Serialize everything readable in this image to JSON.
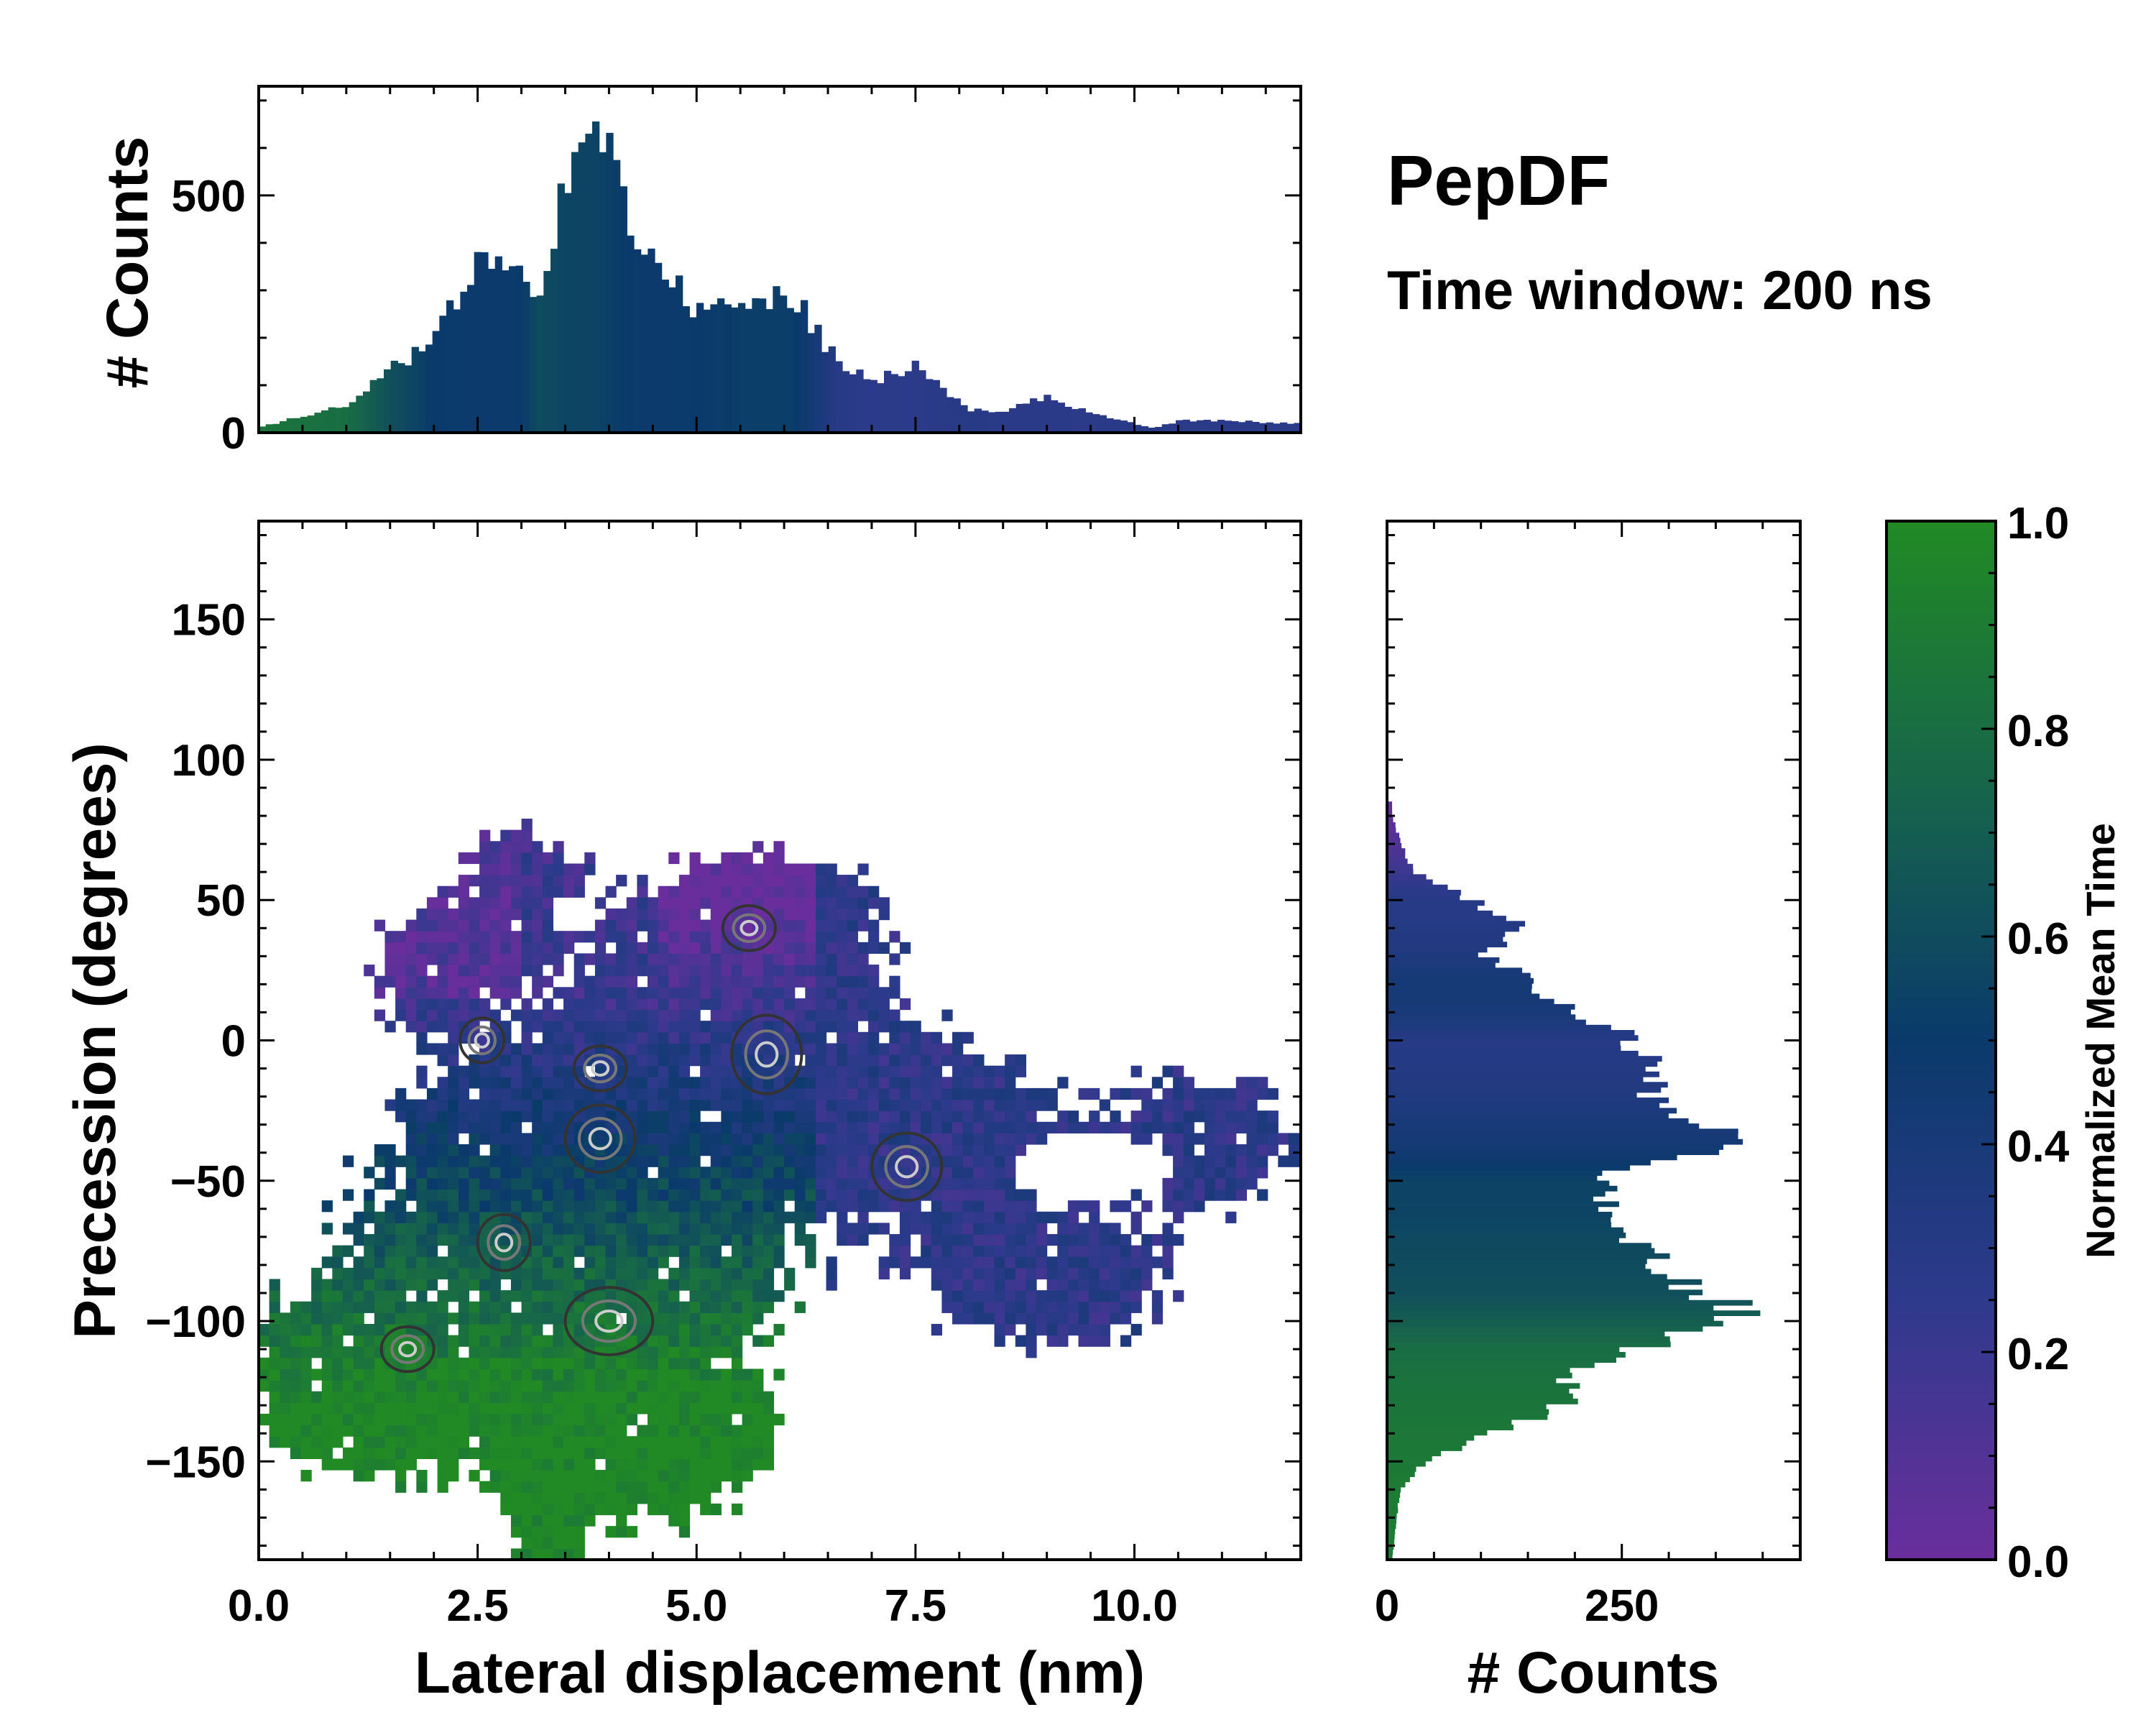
{
  "title": "PepDF",
  "subtitle": "Time window: 200 ns",
  "colormap": {
    "label": "Normalized Mean Time",
    "ticks": [
      "0.0",
      "0.2",
      "0.4",
      "0.6",
      "0.8",
      "1.0"
    ],
    "stops": [
      {
        "v": 0.0,
        "color": "#6a2e9c"
      },
      {
        "v": 0.25,
        "color": "#2e3a8c"
      },
      {
        "v": 0.5,
        "color": "#0a3a6b"
      },
      {
        "v": 0.75,
        "color": "#17664a"
      },
      {
        "v": 1.0,
        "color": "#218a24"
      }
    ]
  },
  "chart_data": [
    {
      "id": "joint",
      "type": "heatmap",
      "xlabel": "Lateral displacement (nm)",
      "ylabel": "Precession (degrees)",
      "xlim": [
        0,
        11.9
      ],
      "ylim": [
        -185,
        185
      ],
      "xticks": [
        0,
        2.5,
        5,
        7.5,
        10
      ],
      "xticklabels": [
        "0.0",
        "2.5",
        "5.0",
        "7.5",
        "10.0"
      ],
      "yticks": [
        -150,
        -100,
        -50,
        0,
        50,
        100,
        150
      ],
      "yticklabels": [
        "−150",
        "−100",
        "−50",
        "0",
        "50",
        "100",
        "150"
      ],
      "hotspots": [
        {
          "x": 3.9,
          "y": -35,
          "w": 0.4,
          "h": 12
        },
        {
          "x": 3.9,
          "y": -10,
          "w": 0.3,
          "h": 8
        },
        {
          "x": 4.0,
          "y": -100,
          "w": 0.5,
          "h": 12
        },
        {
          "x": 2.8,
          "y": -72,
          "w": 0.3,
          "h": 10
        },
        {
          "x": 5.8,
          "y": -5,
          "w": 0.4,
          "h": 14
        },
        {
          "x": 2.55,
          "y": 0,
          "w": 0.25,
          "h": 8
        },
        {
          "x": 1.7,
          "y": -110,
          "w": 0.3,
          "h": 8
        },
        {
          "x": 7.4,
          "y": -45,
          "w": 0.4,
          "h": 12
        },
        {
          "x": 5.6,
          "y": 40,
          "w": 0.3,
          "h": 8
        }
      ]
    },
    {
      "id": "top-histogram",
      "type": "bar",
      "ylabel": "# Counts",
      "ylim": [
        0,
        730
      ],
      "yticks": [
        0,
        500
      ],
      "yticklabels": [
        "0",
        "500"
      ],
      "x": [
        0.0,
        1.0,
        1.5,
        2.0,
        2.6,
        3.0,
        3.2,
        3.5,
        3.85,
        4.2,
        4.5,
        5.0,
        5.5,
        6.1,
        6.6,
        7.0,
        7.5,
        8.1,
        8.5,
        9.0,
        9.5,
        10.2,
        10.5,
        11.0,
        11.9
      ],
      "values": [
        10,
        60,
        130,
        200,
        380,
        320,
        300,
        520,
        670,
        450,
        360,
        260,
        260,
        290,
        150,
        110,
        140,
        50,
        45,
        75,
        40,
        10,
        25,
        25,
        20
      ],
      "colors": [
        0.85,
        0.8,
        0.62,
        0.5,
        0.48,
        0.5,
        0.6,
        0.56,
        0.55,
        0.5,
        0.48,
        0.5,
        0.52,
        0.52,
        0.3,
        0.26,
        0.27,
        0.3,
        0.28,
        0.28,
        0.27,
        0.3,
        0.27,
        0.27,
        0.27
      ]
    },
    {
      "id": "right-histogram",
      "type": "bar",
      "orientation": "horizontal",
      "xlabel": "# Counts",
      "xlim": [
        0,
        440
      ],
      "xticks": [
        0,
        250
      ],
      "xticklabels": [
        "0",
        "250"
      ],
      "y": [
        80,
        70,
        60,
        50,
        45,
        40,
        30,
        25,
        20,
        10,
        5,
        0,
        -10,
        -20,
        -30,
        -35,
        -40,
        -45,
        -50,
        -60,
        -70,
        -80,
        -90,
        -95,
        -100,
        -105,
        -110,
        -120,
        -130,
        -140,
        -150,
        -160,
        -170,
        -185
      ],
      "values": [
        5,
        15,
        30,
        90,
        120,
        150,
        100,
        140,
        165,
        190,
        230,
        260,
        270,
        280,
        330,
        390,
        330,
        270,
        230,
        230,
        250,
        290,
        320,
        370,
        390,
        320,
        250,
        200,
        190,
        110,
        40,
        15,
        10,
        5
      ],
      "colors": [
        0.05,
        0.1,
        0.2,
        0.3,
        0.3,
        0.32,
        0.35,
        0.4,
        0.42,
        0.4,
        0.35,
        0.3,
        0.32,
        0.35,
        0.4,
        0.42,
        0.45,
        0.5,
        0.55,
        0.55,
        0.58,
        0.6,
        0.62,
        0.66,
        0.7,
        0.75,
        0.8,
        0.83,
        0.85,
        0.87,
        0.88,
        0.9,
        0.9,
        0.9
      ]
    }
  ],
  "axes_labels": {
    "top_ylabel": "# Counts",
    "main_xlabel": "Lateral displacement (nm)",
    "main_ylabel": "Precession (degrees)",
    "right_xlabel": "# Counts"
  }
}
